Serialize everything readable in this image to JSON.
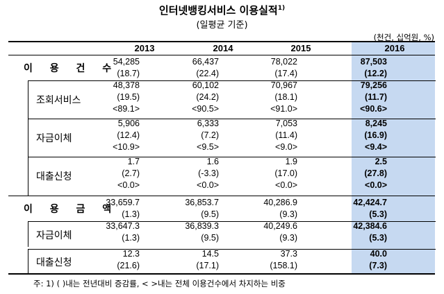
{
  "title": "인터넷뱅킹서비스 이용실적",
  "title_footnote_mark": "1)",
  "subtitle": "(일평균 기준)",
  "unit": "(천건, 십억원, %)",
  "years": [
    "2013",
    "2014",
    "2015",
    "2016"
  ],
  "rows": [
    {
      "label": "이 용 건 수",
      "main": true,
      "lines": [
        [
          "54,285",
          "66,437",
          "78,022",
          "87,503"
        ],
        [
          "(18.7)",
          "(22.4)",
          "(17.4)",
          "(12.2)"
        ]
      ]
    },
    {
      "label": "조회서비스",
      "main": false,
      "lines": [
        [
          "48,378",
          "60,102",
          "70,967",
          "79,256"
        ],
        [
          "(19.5)",
          "(24.2)",
          "(18.1)",
          "(11.7)"
        ],
        [
          "<89.1>",
          "<90.5>",
          "<91.0>",
          "<90.6>"
        ]
      ]
    },
    {
      "label": "자금이체",
      "main": false,
      "lines": [
        [
          "5,906",
          "6,333",
          "7,053",
          "8,245"
        ],
        [
          "(12.4)",
          "(7.2)",
          "(11.4)",
          "(16.9)"
        ],
        [
          "<10.9>",
          "<9.5>",
          "<9.0>",
          "<9.4>"
        ]
      ]
    },
    {
      "label": "대출신청",
      "main": false,
      "lines": [
        [
          "1.7",
          "1.6",
          "1.9",
          "2.5"
        ],
        [
          "(2.7)",
          "(-3.3)",
          "(17.0)",
          "(27.8)"
        ],
        [
          "<0.0>",
          "<0.0>",
          "<0.0>",
          "<0.0>"
        ]
      ]
    },
    {
      "label": "이 용 금 액",
      "main": true,
      "lines": [
        [
          "33,659.7",
          "36,853.7",
          "40,286.9",
          "42,424.7"
        ],
        [
          "(1.3)",
          "(9.5)",
          "(9.3)",
          "(5.3)"
        ]
      ]
    },
    {
      "label": "자금이체",
      "main": false,
      "lines": [
        [
          "33,647.3",
          "36,839.3",
          "40,249.6",
          "42,384.6"
        ],
        [
          "(1.3)",
          "(9.5)",
          "(9.3)",
          "(5.3)"
        ]
      ]
    },
    {
      "label": "대출신청",
      "main": false,
      "lines": [
        [
          "12.3",
          "14.5",
          "37.3",
          "40.0"
        ],
        [
          "(21.6)",
          "(17.1)",
          "(158.1)",
          "(7.3)"
        ]
      ]
    }
  ],
  "footnote": "주: 1) (  )내는 전년대비 증감률, <    >내는 전체 이용건수에서 차지하는 비중",
  "colors": {
    "highlight": "#c6d9f1"
  }
}
